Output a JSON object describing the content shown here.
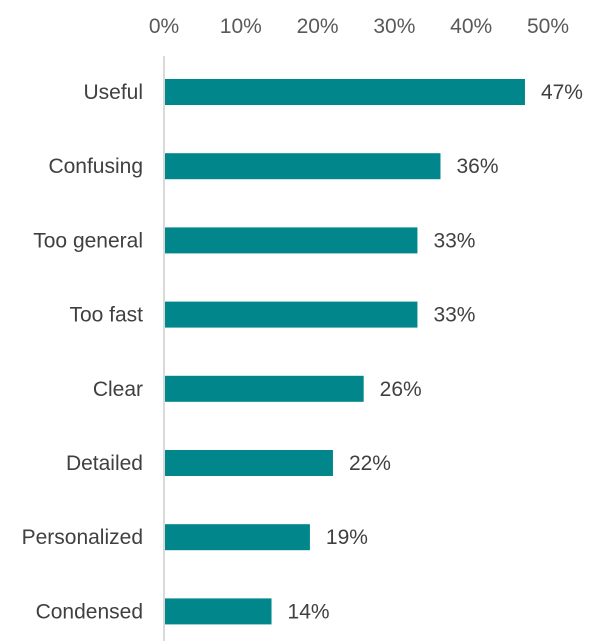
{
  "chart_data": {
    "type": "bar",
    "orientation": "horizontal",
    "categories": [
      "Useful",
      "Confusing",
      "Too general",
      "Too fast",
      "Clear",
      "Detailed",
      "Personalized",
      "Condensed"
    ],
    "values": [
      47,
      36,
      33,
      33,
      26,
      22,
      19,
      14
    ],
    "value_labels": [
      "47%",
      "36%",
      "33%",
      "33%",
      "26%",
      "22%",
      "19%",
      "14%"
    ],
    "x_ticks": [
      "0%",
      "10%",
      "20%",
      "30%",
      "40%",
      "50%"
    ],
    "xlim": [
      0,
      50
    ],
    "axis_position": "top",
    "grid": false,
    "legend": "none",
    "title": "",
    "xlabel": "",
    "ylabel": "",
    "colors": {
      "bar": "#00868B",
      "axis": "#D9D9D9"
    }
  }
}
